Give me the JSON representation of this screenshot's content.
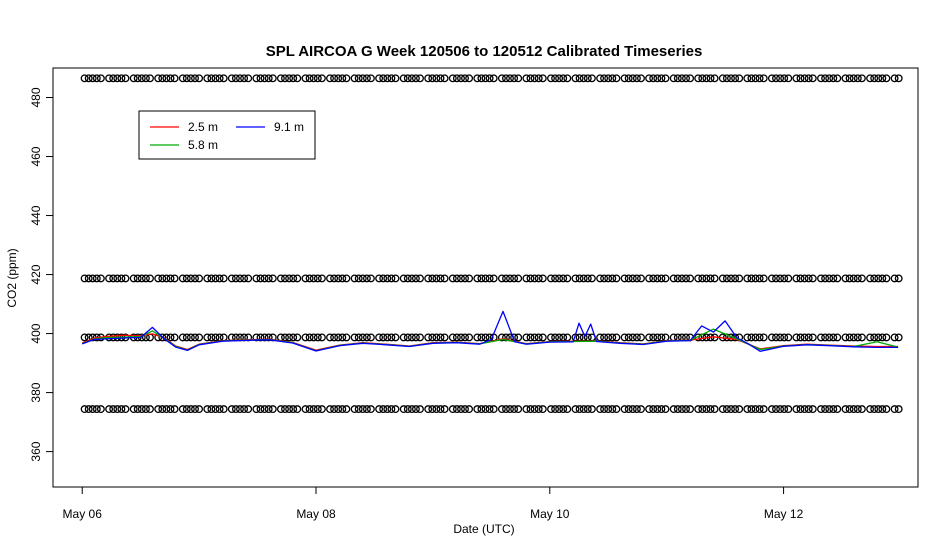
{
  "chart_data": {
    "type": "line",
    "title": "SPL AIRCOA G  Week 120506 to 120512  Calibrated Timeseries",
    "xlabel": "Date (UTC)",
    "ylabel": "CO2 (ppm)",
    "x_tick_labels": [
      "May 06",
      "May 08",
      "May 10",
      "May 12"
    ],
    "x_tick_days": [
      0,
      2,
      4,
      6
    ],
    "xlim": [
      -0.25,
      7.15
    ],
    "y_ticks": [
      360,
      380,
      400,
      420,
      440,
      460,
      480
    ],
    "ylim": [
      348,
      490
    ],
    "legend": {
      "position": "top-left"
    },
    "series": [
      {
        "name": "2.5 m",
        "color": "#ff0000",
        "x": [
          0.0,
          0.1,
          0.2,
          0.35,
          0.5,
          0.6,
          0.7,
          0.8,
          0.9,
          1.0,
          1.2,
          1.4,
          1.6,
          1.8,
          2.0,
          2.2,
          2.4,
          2.6,
          2.8,
          3.0,
          3.2,
          3.4,
          3.6,
          3.8,
          4.0,
          4.2,
          4.4,
          4.6,
          4.8,
          5.0,
          5.2,
          5.4,
          5.6,
          5.8,
          6.0,
          6.2,
          6.4,
          6.6,
          6.8,
          6.98
        ],
        "y": [
          396.8,
          398.4,
          399.0,
          399.4,
          399.3,
          399.9,
          398.6,
          395.8,
          394.6,
          396.4,
          397.6,
          397.9,
          398.1,
          397.0,
          394.4,
          396.1,
          396.9,
          396.4,
          395.8,
          396.9,
          397.1,
          396.6,
          398.2,
          396.6,
          397.3,
          397.4,
          397.5,
          396.9,
          396.5,
          397.6,
          397.8,
          398.9,
          398.0,
          394.8,
          395.9,
          396.4,
          396.1,
          395.8,
          395.6,
          395.6
        ]
      },
      {
        "name": "5.8 m",
        "color": "#00aa00",
        "x": [
          0.0,
          0.1,
          0.2,
          0.35,
          0.5,
          0.6,
          0.7,
          0.8,
          0.9,
          1.0,
          1.2,
          1.4,
          1.6,
          1.8,
          2.0,
          2.2,
          2.4,
          2.6,
          2.8,
          3.0,
          3.2,
          3.4,
          3.6,
          3.8,
          4.0,
          4.2,
          4.4,
          4.6,
          4.8,
          5.0,
          5.2,
          5.4,
          5.6,
          5.8,
          6.0,
          6.2,
          6.4,
          6.6,
          6.8,
          6.98
        ],
        "y": [
          396.6,
          398.1,
          398.6,
          398.8,
          399.0,
          400.9,
          398.4,
          395.6,
          394.4,
          396.3,
          397.5,
          397.8,
          398.0,
          396.9,
          394.2,
          396.0,
          396.8,
          396.3,
          395.7,
          396.8,
          397.0,
          396.5,
          398.0,
          396.5,
          397.2,
          397.3,
          397.4,
          396.8,
          396.4,
          397.5,
          397.7,
          401.5,
          398.2,
          394.6,
          395.8,
          396.3,
          396.0,
          395.6,
          397.2,
          395.4
        ]
      },
      {
        "name": "9.1 m",
        "color": "#0000ff",
        "x": [
          0.0,
          0.1,
          0.2,
          0.35,
          0.5,
          0.6,
          0.7,
          0.8,
          0.9,
          1.0,
          1.2,
          1.4,
          1.6,
          1.8,
          2.0,
          2.2,
          2.4,
          2.6,
          2.8,
          3.0,
          3.2,
          3.4,
          3.5,
          3.6,
          3.7,
          3.8,
          4.0,
          4.2,
          4.25,
          4.3,
          4.35,
          4.4,
          4.6,
          4.8,
          5.0,
          5.2,
          5.3,
          5.4,
          5.5,
          5.6,
          5.7,
          5.8,
          6.0,
          6.2,
          6.4,
          6.6,
          6.8,
          6.98
        ],
        "y": [
          396.5,
          398.0,
          398.2,
          398.5,
          398.7,
          402.1,
          398.3,
          395.4,
          394.3,
          396.2,
          397.4,
          397.7,
          397.9,
          396.8,
          394.1,
          395.9,
          396.7,
          396.2,
          395.6,
          396.7,
          396.9,
          396.4,
          398.0,
          407.5,
          397.2,
          396.4,
          397.1,
          397.2,
          403.5,
          399.0,
          403.2,
          397.3,
          396.7,
          396.3,
          397.4,
          397.6,
          402.6,
          400.5,
          404.3,
          398.6,
          396.5,
          394.0,
          395.7,
          396.2,
          395.9,
          395.5,
          395.3,
          395.3
        ]
      }
    ],
    "cal_point_rows": [
      {
        "y": 486.5,
        "marker": "open-circle"
      },
      {
        "y": 418.7,
        "marker": "open-circle"
      },
      {
        "y": 398.7,
        "marker": "open-circle"
      },
      {
        "y": 374.4,
        "marker": "open-circle"
      }
    ]
  }
}
